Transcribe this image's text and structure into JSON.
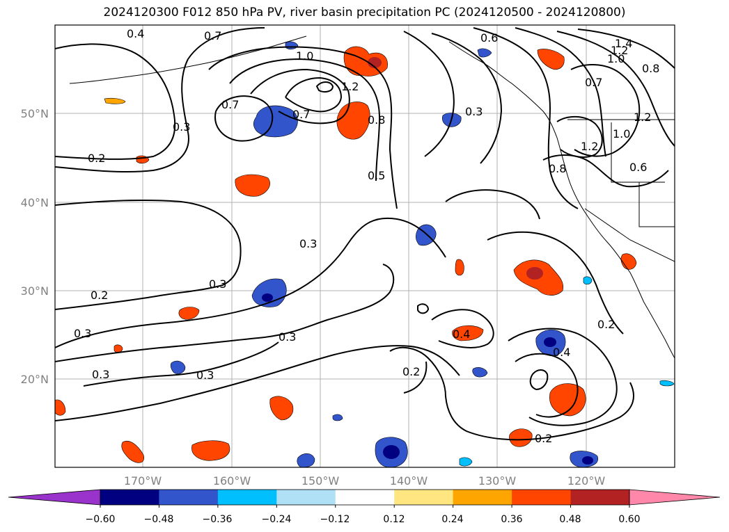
{
  "title": "2024120300 F012 850 hPa PV, river basin precipitation PC (2024120500 - 2024120800)",
  "map": {
    "lat_labels": [
      "50°N",
      "40°N",
      "30°N",
      "20°N"
    ],
    "lon_labels": [
      "170°W",
      "160°W",
      "150°W",
      "140°W",
      "130°W",
      "120°W"
    ],
    "contour_labels": [
      "0.4",
      "0.7",
      "1.0",
      "1.2",
      "0.6",
      "1.4",
      "1.2",
      "1.0",
      "0.8",
      "0.7",
      "0.7",
      "1.2",
      "0.7",
      "0.3",
      "0.8",
      "0.3",
      "1.2",
      "1.0",
      "0.6",
      "0.8",
      "0.2",
      "0.5",
      "0.3",
      "0.3",
      "0.2",
      "0.3",
      "0.3",
      "0.4",
      "0.2",
      "0.3",
      "0.2",
      "0.4",
      "0.2",
      "0.3"
    ],
    "grid": true
  },
  "colorbar": {
    "colors": [
      "#9933cc",
      "#000080",
      "#3355cc",
      "#00bfff",
      "#b0e0f6",
      "#ffffff",
      "#ffe680",
      "#ffa500",
      "#ff4500",
      "#b22222",
      "#ff88aa"
    ],
    "tick_labels": [
      "−0.60",
      "−0.48",
      "−0.36",
      "−0.24",
      "−0.12",
      "0.12",
      "0.24",
      "0.36",
      "0.48",
      "0.60"
    ]
  }
}
